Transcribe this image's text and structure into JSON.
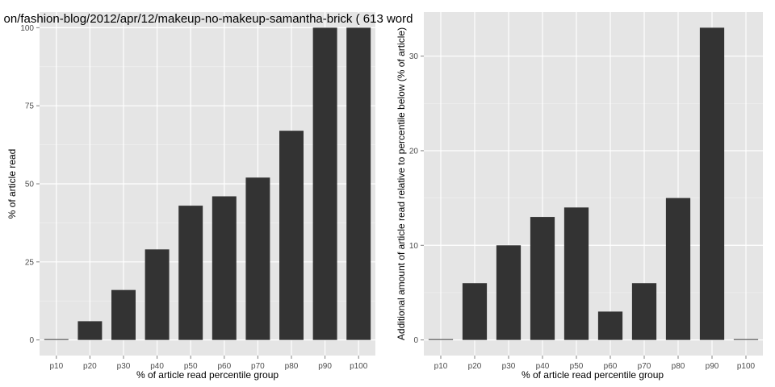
{
  "chart_data": [
    {
      "type": "bar",
      "title": "on/fashion-blog/2012/apr/12/makeup-no-makeup-samantha-brick ( 613 word",
      "xlabel": "% of article read percentile group",
      "ylabel": "% of article read",
      "categories": [
        "p10",
        "p20",
        "p30",
        "p40",
        "p50",
        "p60",
        "p70",
        "p80",
        "p90",
        "p100"
      ],
      "values": [
        0,
        6,
        16,
        29,
        43,
        46,
        52,
        67,
        100,
        100
      ],
      "ylim": [
        -5,
        105
      ],
      "yticks": [
        0,
        25,
        50,
        75,
        100
      ],
      "grid": true,
      "background": "#e5e5e5",
      "bar_color": "#333333"
    },
    {
      "type": "bar",
      "title": "",
      "xlabel": "% of article read percentile group",
      "ylabel": "Additional amount of article read relative to percentile below (% of article)",
      "categories": [
        "p10",
        "p20",
        "p30",
        "p40",
        "p50",
        "p60",
        "p70",
        "p80",
        "p90",
        "p100"
      ],
      "values": [
        0,
        6,
        10,
        13,
        14,
        3,
        6,
        15,
        33,
        0
      ],
      "ylim": [
        -1.65,
        34.65
      ],
      "yticks": [
        0,
        10,
        20,
        30
      ],
      "grid": true,
      "background": "#e5e5e5",
      "bar_color": "#333333"
    }
  ]
}
